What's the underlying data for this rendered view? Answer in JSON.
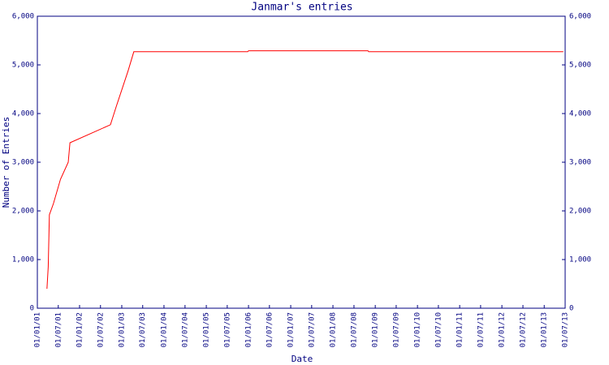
{
  "chart_data": {
    "type": "line",
    "title": "Janmar's entries",
    "x_label": "Date",
    "y_label": "Number of Entries",
    "x": [
      "2001-03-25",
      "2001-04-05",
      "2001-04-15",
      "2001-05-20",
      "2001-07-20",
      "2001-09-25",
      "2001-10-10",
      "2002-09-25",
      "2002-11-15",
      "2003-02-25",
      "2003-04-15",
      "2005-12-25",
      "2006-01-01",
      "2008-10-30",
      "2008-11-05",
      "2013-06-15"
    ],
    "values": [
      400,
      850,
      1920,
      2150,
      2650,
      3000,
      3400,
      3770,
      4150,
      4880,
      5270,
      5270,
      5290,
      5290,
      5270,
      5270
    ],
    "color": "#ff0000",
    "xlim": [
      "2001-01-01",
      "2013-07-01"
    ],
    "xticks": [
      {
        "value": "2001-01-01",
        "label": "01/01/01"
      },
      {
        "value": "2001-07-01",
        "label": "01/07/01"
      },
      {
        "value": "2002-01-01",
        "label": "01/01/02"
      },
      {
        "value": "2002-07-01",
        "label": "01/07/02"
      },
      {
        "value": "2003-01-01",
        "label": "01/01/03"
      },
      {
        "value": "2003-07-01",
        "label": "01/07/03"
      },
      {
        "value": "2004-01-01",
        "label": "01/01/04"
      },
      {
        "value": "2004-07-01",
        "label": "01/07/04"
      },
      {
        "value": "2005-01-01",
        "label": "01/01/05"
      },
      {
        "value": "2005-07-01",
        "label": "01/07/05"
      },
      {
        "value": "2006-01-01",
        "label": "01/01/06"
      },
      {
        "value": "2006-07-01",
        "label": "01/07/06"
      },
      {
        "value": "2007-01-01",
        "label": "01/01/07"
      },
      {
        "value": "2007-07-01",
        "label": "01/07/07"
      },
      {
        "value": "2008-01-01",
        "label": "01/01/08"
      },
      {
        "value": "2008-07-01",
        "label": "01/07/08"
      },
      {
        "value": "2009-01-01",
        "label": "01/01/09"
      },
      {
        "value": "2009-07-01",
        "label": "01/07/09"
      },
      {
        "value": "2010-01-01",
        "label": "01/01/10"
      },
      {
        "value": "2010-07-01",
        "label": "01/07/10"
      },
      {
        "value": "2011-01-01",
        "label": "01/01/11"
      },
      {
        "value": "2011-07-01",
        "label": "01/07/11"
      },
      {
        "value": "2012-01-01",
        "label": "01/01/12"
      },
      {
        "value": "2012-07-01",
        "label": "01/07/12"
      },
      {
        "value": "2013-01-01",
        "label": "01/01/13"
      },
      {
        "value": "2013-07-01",
        "label": "01/07/13"
      }
    ],
    "ylim": [
      0,
      6000
    ],
    "yticks": [
      0,
      {
        "value": 1000,
        "label": "1,000"
      },
      {
        "value": 2000,
        "label": "2,000"
      },
      {
        "value": 3000,
        "label": "3,000"
      },
      {
        "value": 4000,
        "label": "4,000"
      },
      {
        "value": 5000,
        "label": "5,000"
      },
      {
        "value": 6000,
        "label": "6,000"
      }
    ],
    "y2lim": [
      0,
      6000
    ],
    "y2ticks": [
      0,
      {
        "value": 1000,
        "label": "1,000"
      },
      {
        "value": 2000,
        "label": "2,000"
      },
      {
        "value": 3000,
        "label": "3,000"
      },
      {
        "value": 4000,
        "label": "4,000"
      },
      {
        "value": 5000,
        "label": "5,000"
      },
      {
        "value": 6000,
        "label": "6,000"
      }
    ],
    "grid": false
  }
}
